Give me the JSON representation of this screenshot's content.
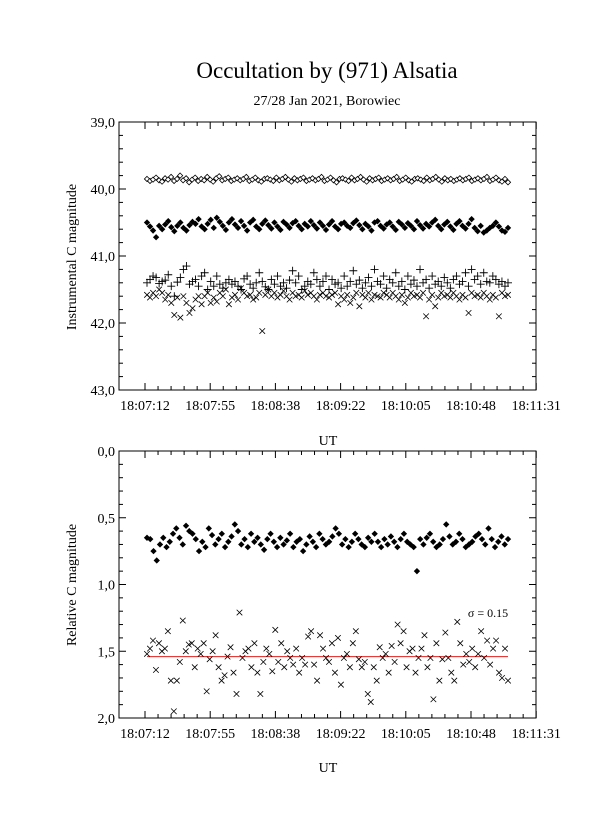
{
  "title": "Occultation by (971) Alsatia",
  "subtitle": "27/28 Jan 2021, Borowiec",
  "chart_data": [
    {
      "type": "scatter",
      "ylabel": "Instrumental C magnitude",
      "xlabel": "UT",
      "x_ticks": [
        "18:07:12",
        "18:07:55",
        "18:08:38",
        "18:09:22",
        "18:10:05",
        "18:10:48",
        "18:11:31"
      ],
      "y_ticks": [
        "39,0",
        "40,0",
        "41,0",
        "42,0",
        "43,0"
      ],
      "ylim": [
        39.0,
        43.0
      ],
      "y_inverted": true,
      "series": [
        {
          "marker": "diamond-open",
          "values": [
            39.85,
            39.88,
            39.86,
            39.83,
            39.87,
            39.89,
            39.84,
            39.86,
            39.82,
            39.88,
            39.85,
            39.8,
            39.87,
            39.84,
            39.9,
            39.86,
            39.83,
            39.88,
            39.85,
            39.87,
            39.82,
            39.86,
            39.89,
            39.84,
            39.81,
            39.87,
            39.85,
            39.83,
            39.88,
            39.86,
            39.84,
            39.87,
            39.85,
            39.82,
            39.88,
            39.86,
            39.83,
            39.87,
            39.89,
            39.85,
            39.84,
            39.86,
            39.88,
            39.83,
            39.87,
            39.85,
            39.82,
            39.86,
            39.89,
            39.84,
            39.87,
            39.85,
            39.83,
            39.88,
            39.86,
            39.84,
            39.87,
            39.85,
            39.82,
            39.88,
            39.86,
            39.83,
            39.87,
            39.9,
            39.85,
            39.84,
            39.86,
            39.88,
            39.83,
            39.87,
            39.85,
            39.82,
            39.86,
            39.89,
            39.84,
            39.87,
            39.85,
            39.83,
            39.88,
            39.86,
            39.84,
            39.87,
            39.85,
            39.82,
            39.88,
            39.86,
            39.83,
            39.87,
            39.89,
            39.85,
            39.84,
            39.86,
            39.88,
            39.83,
            39.87,
            39.85,
            39.82,
            39.86,
            39.89,
            39.84,
            39.87,
            39.85,
            39.88,
            39.86,
            39.84,
            39.87,
            39.85,
            39.83,
            39.88,
            39.86,
            39.84,
            39.87,
            39.85,
            39.82,
            39.88,
            39.86,
            39.83,
            39.87,
            39.89,
            39.85,
            39.9
          ]
        },
        {
          "marker": "diamond-filled",
          "values": [
            40.5,
            40.56,
            40.62,
            40.72,
            40.55,
            40.6,
            40.53,
            40.48,
            40.57,
            40.63,
            40.55,
            40.5,
            40.58,
            40.62,
            40.54,
            40.49,
            40.52,
            40.45,
            40.56,
            40.6,
            40.52,
            40.46,
            40.58,
            40.43,
            40.49,
            40.55,
            40.61,
            40.5,
            40.45,
            40.53,
            40.58,
            40.48,
            40.55,
            40.62,
            40.5,
            40.46,
            40.56,
            40.6,
            40.52,
            40.47,
            40.54,
            40.59,
            40.5,
            40.56,
            40.61,
            40.49,
            40.53,
            40.58,
            40.51,
            40.48,
            40.55,
            40.6,
            40.52,
            40.56,
            40.48,
            40.54,
            40.59,
            40.5,
            40.55,
            40.61,
            40.53,
            40.48,
            40.56,
            40.6,
            40.52,
            40.5,
            40.55,
            40.58,
            40.51,
            40.47,
            40.54,
            40.6,
            40.52,
            40.56,
            40.62,
            40.5,
            40.48,
            40.55,
            40.59,
            40.53,
            40.5,
            40.56,
            40.61,
            40.49,
            40.53,
            40.58,
            40.51,
            40.55,
            40.6,
            40.48,
            40.54,
            40.59,
            40.52,
            40.56,
            40.5,
            40.46,
            40.55,
            40.6,
            40.53,
            40.49,
            40.56,
            40.61,
            40.52,
            40.48,
            40.55,
            40.59,
            40.52,
            40.45,
            40.58,
            40.63,
            40.55,
            40.65,
            40.62,
            40.58,
            40.55,
            40.5,
            40.56,
            40.62,
            40.64,
            40.58
          ]
        },
        {
          "marker": "plus",
          "values": [
            41.4,
            41.35,
            41.3,
            41.32,
            41.41,
            41.38,
            41.36,
            41.28,
            41.45,
            41.6,
            41.39,
            41.32,
            41.2,
            41.15,
            41.42,
            41.38,
            41.35,
            41.45,
            41.3,
            41.25,
            41.5,
            41.38,
            41.45,
            41.3,
            41.42,
            41.48,
            41.4,
            41.35,
            41.42,
            41.38,
            41.45,
            41.5,
            41.34,
            41.3,
            41.42,
            41.48,
            41.4,
            41.25,
            41.38,
            41.46,
            41.5,
            41.35,
            41.42,
            41.3,
            41.45,
            41.4,
            41.48,
            41.36,
            41.22,
            41.4,
            41.3,
            41.5,
            41.45,
            41.38,
            41.42,
            41.25,
            41.35,
            41.45,
            41.38,
            41.3,
            41.5,
            41.35,
            41.42,
            41.4,
            41.48,
            41.3,
            41.45,
            41.38,
            41.22,
            41.42,
            41.36,
            41.48,
            41.4,
            41.32,
            41.45,
            41.2,
            41.38,
            41.42,
            41.3,
            41.48,
            41.35,
            41.4,
            41.25,
            41.45,
            41.38,
            41.5,
            41.3,
            41.42,
            41.36,
            41.45,
            41.2,
            41.4,
            41.35,
            41.48,
            41.3,
            41.42,
            41.38,
            41.45,
            41.32,
            41.4,
            41.48,
            41.35,
            41.3,
            41.42,
            41.38,
            41.25,
            41.45,
            41.2,
            41.35,
            41.3,
            41.42,
            41.25,
            41.38,
            41.4,
            41.3,
            41.35,
            41.42,
            41.38,
            41.45,
            41.4
          ]
        },
        {
          "marker": "cross",
          "values": [
            41.58,
            41.62,
            41.55,
            41.6,
            41.5,
            41.55,
            41.65,
            41.58,
            41.7,
            41.88,
            41.62,
            41.92,
            41.6,
            41.7,
            41.85,
            41.78,
            41.65,
            41.6,
            41.72,
            41.6,
            41.55,
            41.7,
            41.62,
            41.68,
            41.55,
            41.6,
            41.5,
            41.72,
            41.62,
            41.58,
            41.65,
            41.48,
            41.55,
            41.6,
            41.58,
            41.65,
            41.62,
            41.55,
            42.12,
            41.58,
            41.5,
            41.6,
            41.55,
            41.62,
            41.58,
            41.52,
            41.6,
            41.65,
            41.55,
            41.6,
            41.58,
            41.62,
            41.52,
            41.58,
            41.55,
            41.6,
            41.65,
            41.58,
            41.55,
            41.6,
            41.62,
            41.58,
            41.55,
            41.72,
            41.6,
            41.65,
            41.58,
            41.7,
            41.62,
            41.55,
            41.75,
            41.58,
            41.62,
            41.55,
            41.65,
            41.58,
            41.6,
            41.62,
            41.55,
            41.58,
            41.62,
            41.55,
            41.6,
            41.65,
            41.58,
            41.7,
            41.62,
            41.55,
            41.6,
            41.58,
            41.62,
            41.55,
            41.9,
            41.65,
            41.58,
            41.75,
            41.62,
            41.55,
            41.6,
            41.58,
            41.62,
            41.55,
            41.6,
            41.65,
            41.58,
            41.62,
            41.85,
            41.55,
            41.6,
            41.58,
            41.62,
            41.55,
            41.6,
            41.65,
            41.58,
            41.62,
            41.9,
            41.55,
            41.6,
            41.58
          ]
        }
      ]
    },
    {
      "type": "scatter",
      "ylabel": "Relative C magnitude",
      "xlabel": "UT",
      "x_ticks": [
        "18:07:12",
        "18:07:55",
        "18:08:38",
        "18:09:22",
        "18:10:05",
        "18:10:48",
        "18:11:31"
      ],
      "y_ticks": [
        "0,0",
        "0,5",
        "1,0",
        "1,5",
        "2,0"
      ],
      "ylim": [
        0.0,
        2.0
      ],
      "y_inverted": true,
      "annotation": "σ = 0.15",
      "mean_line": {
        "value": 1.54,
        "color": "#e0201c"
      },
      "series": [
        {
          "marker": "diamond-filled",
          "values": [
            0.65,
            0.66,
            0.75,
            0.82,
            0.7,
            0.65,
            0.72,
            0.68,
            0.62,
            0.58,
            0.65,
            0.7,
            0.56,
            0.6,
            0.62,
            0.66,
            0.75,
            0.68,
            0.72,
            0.58,
            0.63,
            0.7,
            0.66,
            0.62,
            0.72,
            0.68,
            0.64,
            0.55,
            0.6,
            0.7,
            0.66,
            0.72,
            0.62,
            0.68,
            0.65,
            0.7,
            0.74,
            0.66,
            0.62,
            0.68,
            0.72,
            0.65,
            0.7,
            0.67,
            0.62,
            0.72,
            0.68,
            0.66,
            0.75,
            0.7,
            0.64,
            0.68,
            0.72,
            0.62,
            0.66,
            0.7,
            0.68,
            0.64,
            0.58,
            0.62,
            0.7,
            0.66,
            0.72,
            0.68,
            0.62,
            0.66,
            0.7,
            0.72,
            0.65,
            0.68,
            0.62,
            0.68,
            0.72,
            0.66,
            0.7,
            0.64,
            0.68,
            0.72,
            0.66,
            0.62,
            0.68,
            0.7,
            0.72,
            0.9,
            0.66,
            0.7,
            0.65,
            0.62,
            0.68,
            0.72,
            0.7,
            0.66,
            0.55,
            0.64,
            0.7,
            0.68,
            0.62,
            0.66,
            0.72,
            0.7,
            0.68,
            0.64,
            0.62,
            0.66,
            0.7,
            0.58,
            0.66,
            0.72,
            0.68,
            0.64,
            0.7,
            0.66
          ]
        },
        {
          "marker": "cross",
          "values": [
            1.52,
            1.48,
            1.42,
            1.64,
            1.44,
            1.5,
            1.48,
            1.35,
            1.72,
            1.95,
            1.72,
            1.58,
            1.27,
            1.5,
            1.45,
            1.44,
            1.62,
            1.48,
            1.52,
            1.44,
            1.8,
            1.56,
            1.5,
            1.38,
            1.62,
            1.72,
            1.68,
            1.54,
            1.47,
            1.66,
            1.82,
            1.21,
            1.55,
            1.5,
            1.48,
            1.62,
            1.44,
            1.66,
            1.82,
            1.58,
            1.48,
            1.52,
            1.65,
            1.34,
            1.58,
            1.44,
            1.62,
            1.5,
            1.55,
            1.6,
            1.48,
            1.66,
            1.55,
            1.6,
            1.39,
            1.35,
            1.6,
            1.72,
            1.38,
            1.48,
            1.55,
            1.58,
            1.44,
            1.66,
            1.4,
            1.75,
            1.55,
            1.52,
            1.62,
            1.44,
            1.35,
            1.56,
            1.62,
            1.58,
            1.82,
            1.88,
            1.62,
            1.72,
            1.47,
            1.55,
            1.52,
            1.66,
            1.46,
            1.58,
            1.3,
            1.44,
            1.35,
            1.62,
            1.5,
            1.48,
            1.66,
            1.55,
            1.48,
            1.38,
            1.62,
            1.55,
            1.86,
            1.44,
            1.72,
            1.56,
            1.36,
            1.55,
            1.66,
            1.72,
            1.28,
            1.44,
            1.6,
            1.52,
            1.58,
            1.48,
            1.62,
            1.52,
            1.35,
            1.55,
            1.42,
            1.6,
            1.48,
            1.42,
            1.66,
            1.7,
            1.48,
            1.72
          ]
        }
      ]
    }
  ]
}
